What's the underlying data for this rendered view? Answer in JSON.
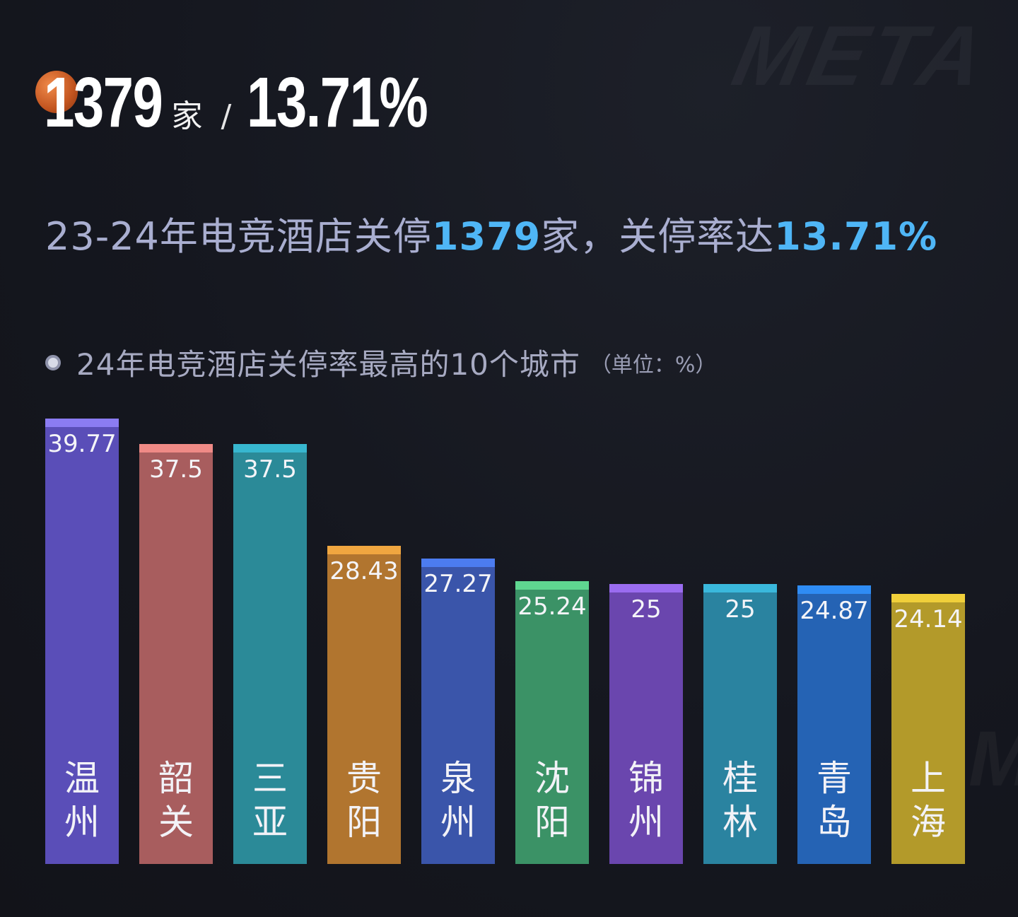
{
  "headline": {
    "count": "1379",
    "count_unit": "家",
    "separator": "/",
    "rate": "13.71%"
  },
  "subtitle": {
    "prefix": "23-24年电竞酒店关停",
    "count": "1379",
    "middle": "家，关停率达",
    "rate": "13.71%"
  },
  "chart_title": {
    "main": "24年电竞酒店关停率最高的10个城市",
    "unit": "（单位：%）"
  },
  "watermark": "META",
  "chart_data": {
    "type": "bar",
    "title": "24年电竞酒店关停率最高的10个城市",
    "unit": "%",
    "categories": [
      "温州",
      "韶关",
      "三亚",
      "贵阳",
      "泉州",
      "沈阳",
      "锦州",
      "桂林",
      "青岛",
      "上海"
    ],
    "values": [
      39.77,
      37.5,
      37.5,
      28.43,
      27.27,
      25.24,
      25,
      25,
      24.87,
      24.14
    ],
    "value_labels": [
      "39.77",
      "37.5",
      "37.5",
      "28.43",
      "27.27",
      "25.24",
      "25",
      "25",
      "24.87",
      "24.14"
    ],
    "ylim": [
      0,
      40
    ],
    "grid": false,
    "colors": {
      "bar": [
        "#5a4eb8",
        "#a85d5e",
        "#2b8a98",
        "#b1752f",
        "#3a55aa",
        "#3b9266",
        "#6a46ae",
        "#2a83a0",
        "#2563b4",
        "#b39a2a"
      ],
      "cap": [
        "#8b7cf2",
        "#ef8a86",
        "#37b7cf",
        "#f0a640",
        "#4c7cf0",
        "#5fd690",
        "#9a6cf0",
        "#3ab8dc",
        "#2f8cf4",
        "#f0cf3a"
      ]
    }
  }
}
